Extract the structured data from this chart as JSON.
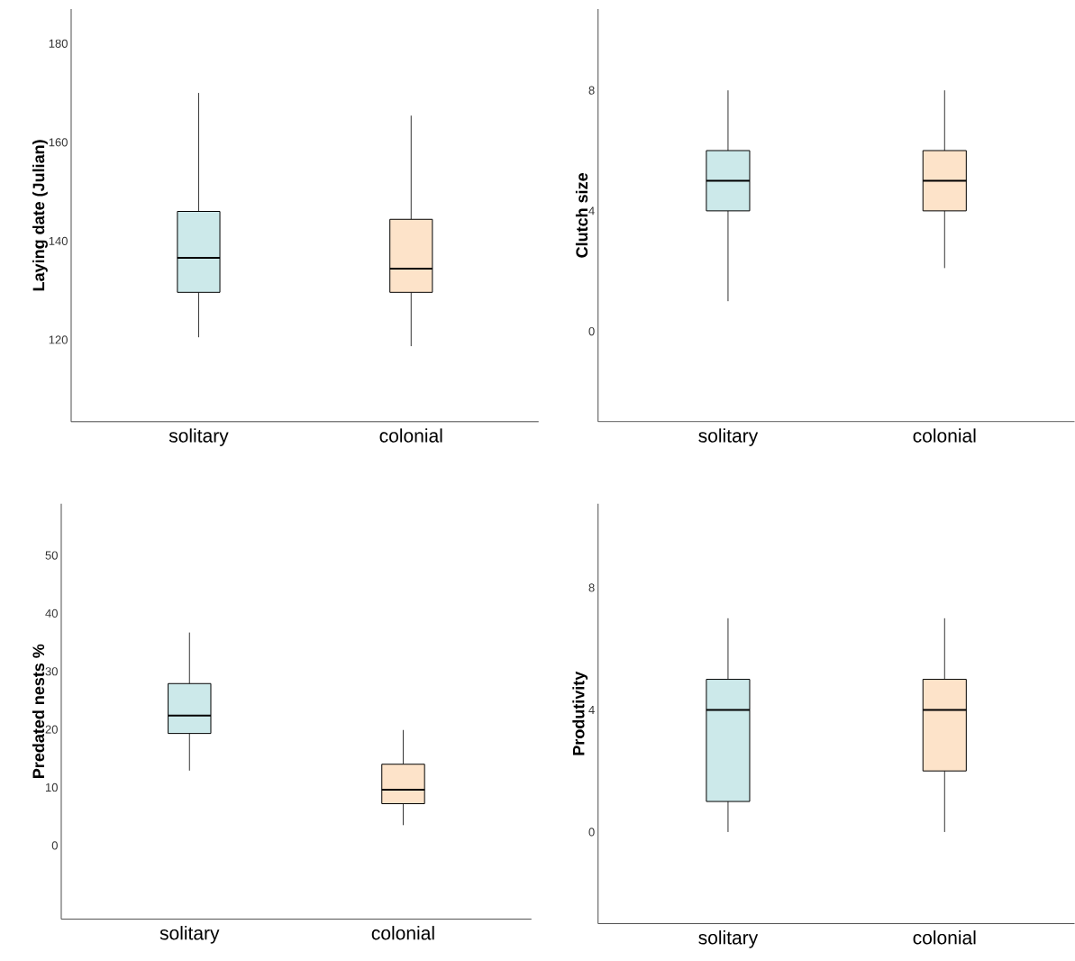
{
  "chart_data": [
    {
      "type": "box",
      "categories": [
        "solitary",
        "colonial"
      ],
      "ylabel": "Laying date (Julian)",
      "ylim": [
        103.4,
        187
      ],
      "yticks": [
        120,
        140,
        160,
        180
      ],
      "colors": [
        "#cce9ea",
        "#fde3c9"
      ],
      "boxes": [
        {
          "low": 120.5,
          "q1": 129.6,
          "median": 136.6,
          "q3": 146,
          "high": 170
        },
        {
          "low": 118.7,
          "q1": 129.6,
          "median": 134.4,
          "q3": 144.4,
          "high": 165.4
        }
      ]
    },
    {
      "type": "box",
      "categories": [
        "solitary",
        "colonial"
      ],
      "ylabel": "Clutch size",
      "ylim": [
        -3,
        10.7
      ],
      "yticks": [
        0,
        4,
        8
      ],
      "colors": [
        "#cce9ea",
        "#fde3c9"
      ],
      "boxes": [
        {
          "low": 1,
          "q1": 4,
          "median": 5,
          "q3": 6,
          "high": 8
        },
        {
          "low": 2.1,
          "q1": 4,
          "median": 5,
          "q3": 6,
          "high": 8
        }
      ]
    },
    {
      "type": "box",
      "categories": [
        "solitary",
        "colonial"
      ],
      "ylabel": "Predated nests %",
      "ylim": [
        -12.7,
        58.9
      ],
      "yticks": [
        0,
        10,
        20,
        30,
        40,
        50
      ],
      "colors": [
        "#cce9ea",
        "#fde3c9"
      ],
      "boxes": [
        {
          "low": 12.9,
          "q1": 19.3,
          "median": 22.4,
          "q3": 27.9,
          "high": 36.7
        },
        {
          "low": 3.5,
          "q1": 7.2,
          "median": 9.6,
          "q3": 14.0,
          "high": 19.9
        }
      ]
    },
    {
      "type": "box",
      "categories": [
        "solitary",
        "colonial"
      ],
      "ylabel": "Produtivity",
      "ylim": [
        -3,
        10.75
      ],
      "yticks": [
        0,
        4,
        8
      ],
      "colors": [
        "#cce9ea",
        "#fde3c9"
      ],
      "boxes": [
        {
          "low": 0,
          "q1": 1,
          "median": 4,
          "q3": 5,
          "high": 7
        },
        {
          "low": 0,
          "q1": 2,
          "median": 4,
          "q3": 5,
          "high": 7
        }
      ]
    }
  ]
}
